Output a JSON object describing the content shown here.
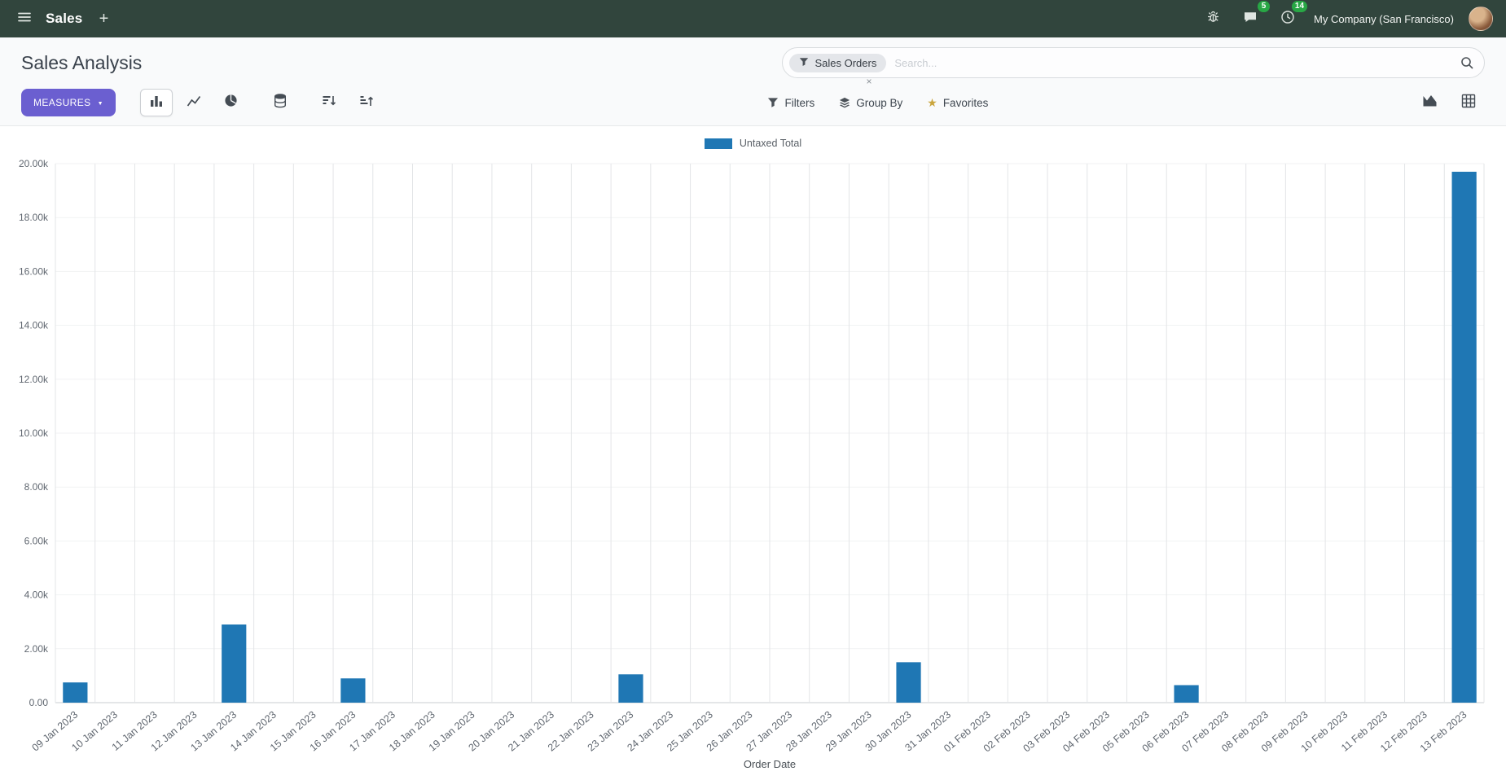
{
  "navbar": {
    "app_name": "Sales",
    "new_label": "+",
    "messages_badge": "5",
    "activities_badge": "14",
    "company": "My Company (San Francisco)"
  },
  "control_panel": {
    "title": "Sales Analysis",
    "search": {
      "facet_label": "Sales Orders",
      "facet_remove": "×",
      "placeholder": "Search..."
    },
    "measures_label": "MEASURES",
    "filters_label": "Filters",
    "group_by_label": "Group By",
    "favorites_label": "Favorites"
  },
  "icons": {
    "caret_down": "▼",
    "star": "★"
  },
  "colors": {
    "navbar_bg": "#31453d",
    "primary_button": "#6b5fd0",
    "badge_green": "#28a745",
    "bar": "#1f77b4"
  },
  "chart_data": {
    "type": "bar",
    "title": "",
    "xlabel": "Order Date",
    "ylabel": "",
    "ylim": [
      0,
      20000
    ],
    "y_tick_labels": [
      "0.00",
      "2.00k",
      "4.00k",
      "6.00k",
      "8.00k",
      "10.00k",
      "12.00k",
      "14.00k",
      "16.00k",
      "18.00k",
      "20.00k"
    ],
    "grid": true,
    "legend_position": "top",
    "categories": [
      "09 Jan 2023",
      "10 Jan 2023",
      "11 Jan 2023",
      "12 Jan 2023",
      "13 Jan 2023",
      "14 Jan 2023",
      "15 Jan 2023",
      "16 Jan 2023",
      "17 Jan 2023",
      "18 Jan 2023",
      "19 Jan 2023",
      "20 Jan 2023",
      "21 Jan 2023",
      "22 Jan 2023",
      "23 Jan 2023",
      "24 Jan 2023",
      "25 Jan 2023",
      "26 Jan 2023",
      "27 Jan 2023",
      "28 Jan 2023",
      "29 Jan 2023",
      "30 Jan 2023",
      "31 Jan 2023",
      "01 Feb 2023",
      "02 Feb 2023",
      "03 Feb 2023",
      "04 Feb 2023",
      "05 Feb 2023",
      "06 Feb 2023",
      "07 Feb 2023",
      "08 Feb 2023",
      "09 Feb 2023",
      "10 Feb 2023",
      "11 Feb 2023",
      "12 Feb 2023",
      "13 Feb 2023"
    ],
    "series": [
      {
        "name": "Untaxed Total",
        "color": "#1f77b4",
        "values": [
          750,
          0,
          0,
          0,
          2900,
          0,
          0,
          900,
          0,
          0,
          0,
          0,
          0,
          0,
          1050,
          0,
          0,
          0,
          0,
          0,
          0,
          1500,
          0,
          0,
          0,
          0,
          0,
          0,
          650,
          0,
          0,
          0,
          0,
          0,
          0,
          19700
        ]
      }
    ]
  }
}
